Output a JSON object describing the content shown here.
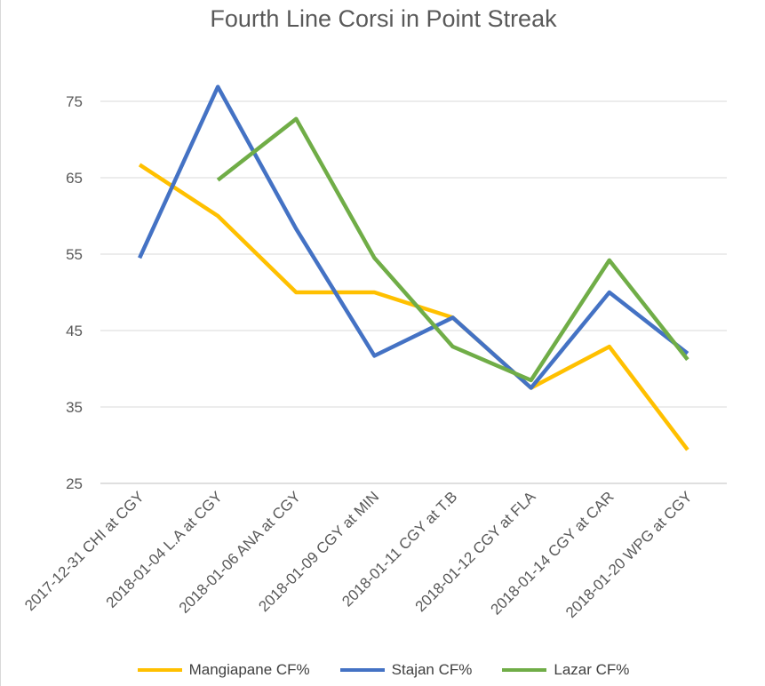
{
  "chart_data": {
    "type": "line",
    "title": "Fourth Line Corsi in Point Streak",
    "xlabel": "",
    "ylabel": "",
    "categories": [
      "2017-12-31 CHI at CGY",
      "2018-01-04 L.A at CGY",
      "2018-01-06 ANA at CGY",
      "2018-01-09 CGY at MIN",
      "2018-01-11 CGY at T.B",
      "2018-01-12 CGY at FLA",
      "2018-01-14 CGY at CAR",
      "2018-01-20 WPG at CGY"
    ],
    "y_ticks": [
      "25",
      "35",
      "45",
      "55",
      "65",
      "75"
    ],
    "ylim": [
      25,
      80
    ],
    "grid": true,
    "legend_position": "bottom",
    "series": [
      {
        "name": "Mangiapane CF%",
        "color": "#FFC000",
        "values": [
          66.7,
          60.0,
          50.0,
          50.0,
          46.7,
          37.5,
          42.9,
          29.4
        ]
      },
      {
        "name": "Stajan CF%",
        "color": "#4472C4",
        "values": [
          54.5,
          76.9,
          58.3,
          41.7,
          46.7,
          37.5,
          50.0,
          42.0
        ]
      },
      {
        "name": "Lazar CF%",
        "color": "#70AD47",
        "values": [
          null,
          64.7,
          72.7,
          54.5,
          42.9,
          38.5,
          54.2,
          41.2
        ]
      }
    ]
  }
}
